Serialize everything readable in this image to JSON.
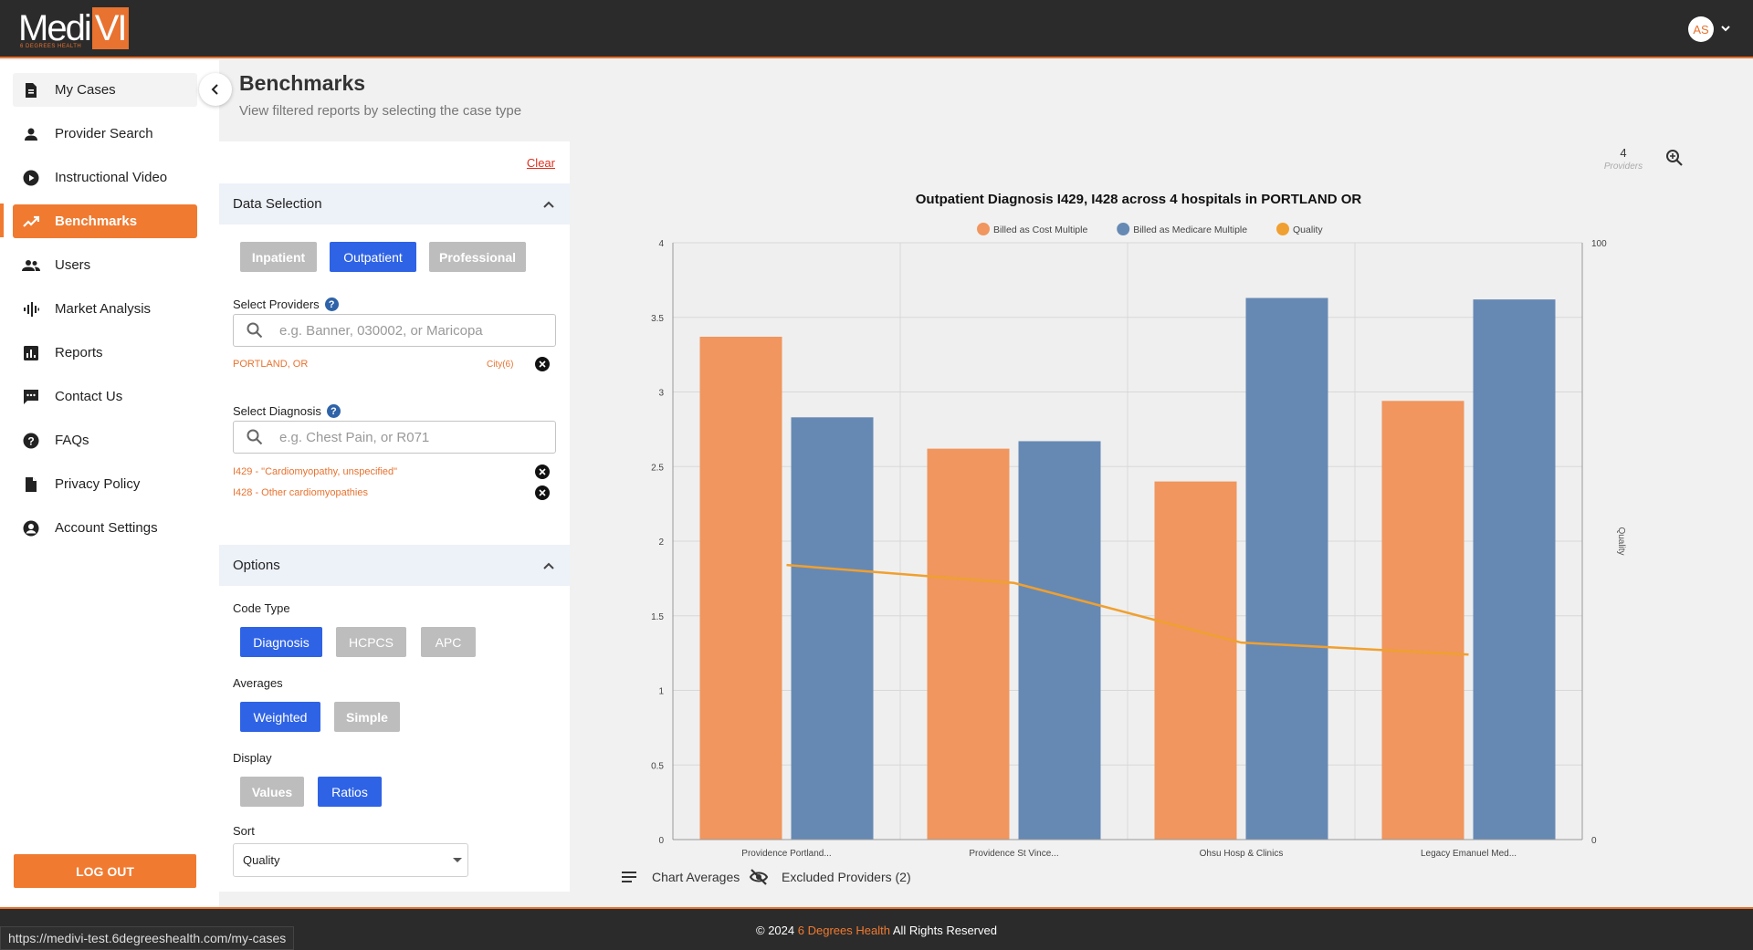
{
  "app": {
    "logo_main": "Medi",
    "logo_accent": "VI",
    "logo_sub": "6 DEGREES HEALTH",
    "avatar_initials": "AS"
  },
  "sidebar": {
    "items": [
      {
        "label": "My Cases",
        "icon": "document-icon"
      },
      {
        "label": "Provider Search",
        "icon": "person-icon"
      },
      {
        "label": "Instructional Video",
        "icon": "play-icon"
      },
      {
        "label": "Benchmarks",
        "icon": "trending-up-icon"
      },
      {
        "label": "Users",
        "icon": "users-icon"
      },
      {
        "label": "Market Analysis",
        "icon": "waveform-icon"
      },
      {
        "label": "Reports",
        "icon": "bar-chart-icon"
      },
      {
        "label": "Contact Us",
        "icon": "chat-icon"
      },
      {
        "label": "FAQs",
        "icon": "help-circle-icon"
      },
      {
        "label": "Privacy Policy",
        "icon": "document-icon"
      },
      {
        "label": "Account Settings",
        "icon": "account-circle-icon"
      }
    ],
    "active": "Benchmarks",
    "logout_label": "LOG OUT"
  },
  "page": {
    "title": "Benchmarks",
    "subtitle": "View filtered reports by selecting the case type"
  },
  "filters": {
    "clear_label": "Clear",
    "data_selection": {
      "title": "Data Selection",
      "case_types": [
        {
          "label": "Inpatient",
          "selected": false
        },
        {
          "label": "Outpatient",
          "selected": true
        },
        {
          "label": "Professional",
          "selected": false
        }
      ],
      "providers_label": "Select Providers",
      "providers_placeholder": "e.g. Banner, 030002, or Maricopa",
      "provider_tag": "PORTLAND, OR",
      "provider_tag_meta": "City(6)",
      "diagnosis_label": "Select Diagnosis",
      "diagnosis_placeholder": "e.g. Chest Pain, or R071",
      "diagnosis_tags": [
        "I429 - \"Cardiomyopathy, unspecified\"",
        "I428 - Other cardiomyopathies"
      ]
    },
    "options": {
      "title": "Options",
      "code_type_label": "Code Type",
      "code_types": [
        {
          "label": "Diagnosis",
          "selected": true
        },
        {
          "label": "HCPCS",
          "selected": false
        },
        {
          "label": "APC",
          "selected": false
        }
      ],
      "averages_label": "Averages",
      "averages": [
        {
          "label": "Weighted",
          "selected": true
        },
        {
          "label": "Simple",
          "selected": false
        }
      ],
      "display_label": "Display",
      "display": [
        {
          "label": "Values",
          "selected": false
        },
        {
          "label": "Ratios",
          "selected": true
        }
      ],
      "sort_label": "Sort",
      "sort_value": "Quality"
    }
  },
  "chart_meta": {
    "providers_count": "4",
    "providers_label": "Providers",
    "chart_averages_label": "Chart Averages",
    "excluded_label": "Excluded Providers (2)"
  },
  "chart_data": {
    "type": "bar",
    "title": "Outpatient Diagnosis I429, I428 across 4 hospitals in PORTLAND OR",
    "categories": [
      "Providence Portland...",
      "Providence St Vince...",
      "Ohsu Hosp & Clinics",
      "Legacy Emanuel Med..."
    ],
    "series": [
      {
        "name": "Billed as Cost Multiple",
        "type": "bar",
        "color": "#f0965e",
        "values": [
          3.37,
          2.62,
          2.4,
          2.94
        ]
      },
      {
        "name": "Billed as Medicare Multiple",
        "type": "bar",
        "color": "#6689b4",
        "values": [
          2.83,
          2.67,
          3.63,
          3.62
        ]
      },
      {
        "name": "Quality",
        "type": "line",
        "axis": "right",
        "color": "#f0a030",
        "values": [
          46,
          43,
          33,
          31
        ]
      }
    ],
    "y_left": {
      "min": 0,
      "max": 4,
      "ticks": [
        "0",
        "0.5",
        "1",
        "1.5",
        "2",
        "2.5",
        "3",
        "3.5",
        "4"
      ]
    },
    "y_right": {
      "min": 0,
      "max": 100,
      "ticks": [
        "0",
        "100"
      ],
      "label": "Quality"
    },
    "grid": true,
    "legend_position": "top"
  },
  "footer": {
    "copyright_prefix": "© 2024 ",
    "brand": "6 Degrees Health",
    "copyright_suffix": " All Rights Reserved"
  },
  "status_url": "https://medivi-test.6degreeshealth.com/my-cases"
}
